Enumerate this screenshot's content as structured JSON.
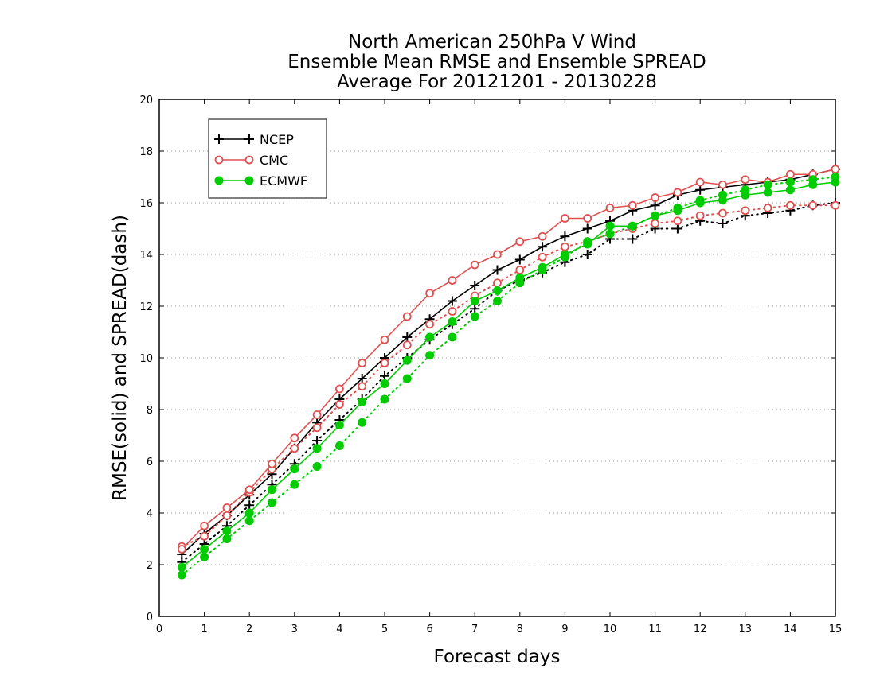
{
  "chart_data": {
    "type": "line",
    "title": [
      "North American 250hPa V Wind",
      "Ensemble Mean RMSE and Ensemble SPREAD",
      "Average For 20121201 - 20130228"
    ],
    "xlabel": "Forecast days",
    "ylabel": "RMSE(solid) and SPREAD(dash)",
    "xlim": [
      0,
      15
    ],
    "ylim": [
      0,
      20
    ],
    "xticks": [
      "0",
      "1",
      "2",
      "3",
      "4",
      "5",
      "6",
      "7",
      "8",
      "9",
      "10",
      "11",
      "12",
      "13",
      "14",
      "15"
    ],
    "yticks": [
      "0",
      "2",
      "4",
      "6",
      "8",
      "10",
      "12",
      "14",
      "16",
      "18",
      "20"
    ],
    "grid": "horizontal dotted",
    "legend_position": "top-left",
    "x": [
      0.5,
      1,
      1.5,
      2,
      2.5,
      3,
      3.5,
      4,
      4.5,
      5,
      5.5,
      6,
      6.5,
      7,
      7.5,
      8,
      8.5,
      9,
      9.5,
      10,
      10.5,
      11,
      11.5,
      12,
      12.5,
      13,
      13.5,
      14,
      14.5,
      15
    ],
    "series": [
      {
        "name": "NCEP",
        "color": "#000000",
        "marker": "plus",
        "rmse": [
          2.4,
          3.2,
          3.9,
          4.7,
          5.5,
          6.5,
          7.5,
          8.4,
          9.2,
          10.0,
          10.8,
          11.5,
          12.2,
          12.8,
          13.4,
          13.8,
          14.3,
          14.7,
          15.0,
          15.3,
          15.7,
          15.9,
          16.3,
          16.5,
          16.6,
          16.7,
          16.8,
          16.9,
          17.1,
          17.3
        ],
        "spread": [
          2.1,
          2.8,
          3.5,
          4.3,
          5.1,
          5.9,
          6.8,
          7.6,
          8.4,
          9.3,
          10.0,
          10.7,
          11.3,
          11.9,
          12.6,
          13.0,
          13.3,
          13.7,
          14.0,
          14.6,
          14.6,
          15.0,
          15.0,
          15.3,
          15.2,
          15.5,
          15.6,
          15.7,
          15.9,
          16.0
        ]
      },
      {
        "name": "CMC",
        "color": "#e05050",
        "marker": "circle",
        "rmse": [
          2.6,
          3.5,
          4.2,
          4.9,
          5.9,
          6.9,
          7.8,
          8.8,
          9.8,
          10.7,
          11.6,
          12.5,
          13.0,
          13.6,
          14.0,
          14.5,
          14.7,
          15.4,
          15.4,
          15.8,
          15.9,
          16.2,
          16.4,
          16.8,
          16.7,
          16.9,
          16.8,
          17.1,
          17.1,
          17.3
        ],
        "spread": [
          2.7,
          3.1,
          3.9,
          4.8,
          5.7,
          6.5,
          7.3,
          8.2,
          8.9,
          9.8,
          10.5,
          11.3,
          11.8,
          12.4,
          12.9,
          13.4,
          13.9,
          14.3,
          14.5,
          14.8,
          15.0,
          15.2,
          15.3,
          15.5,
          15.6,
          15.7,
          15.8,
          15.9,
          15.9,
          15.9
        ]
      },
      {
        "name": "ECMWF",
        "color": "#00cc00",
        "marker": "filled-circle",
        "rmse": [
          1.9,
          2.6,
          3.3,
          4.0,
          4.9,
          5.7,
          6.5,
          7.4,
          8.3,
          9.0,
          9.9,
          10.8,
          11.4,
          12.2,
          12.6,
          13.1,
          13.5,
          14.0,
          14.4,
          15.1,
          15.1,
          15.5,
          15.7,
          16.0,
          16.1,
          16.3,
          16.4,
          16.5,
          16.7,
          16.8
        ],
        "spread": [
          1.6,
          2.3,
          3.0,
          3.7,
          4.4,
          5.1,
          5.8,
          6.6,
          7.5,
          8.4,
          9.2,
          10.1,
          10.8,
          11.6,
          12.2,
          12.9,
          13.4,
          13.9,
          14.5,
          14.8,
          15.1,
          15.5,
          15.8,
          16.1,
          16.3,
          16.5,
          16.7,
          16.8,
          16.9,
          17.0
        ]
      }
    ]
  }
}
